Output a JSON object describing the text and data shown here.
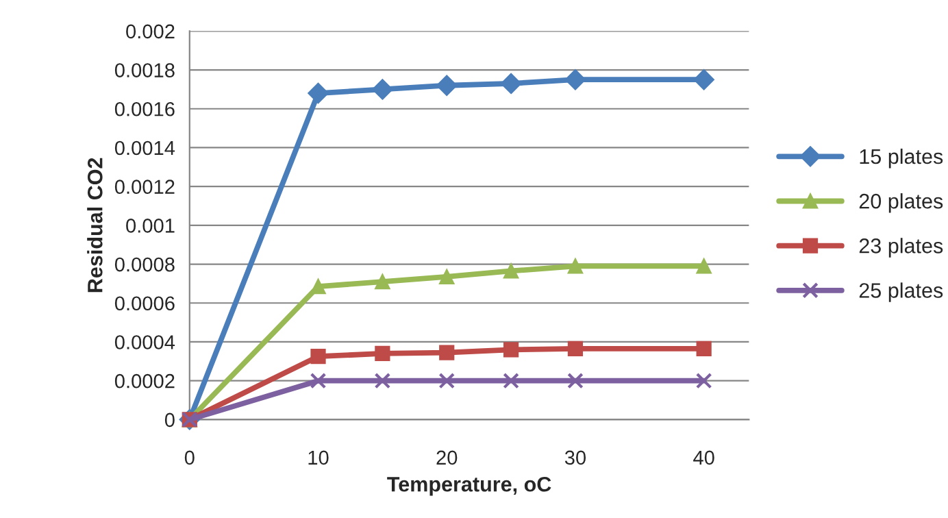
{
  "chart_data": {
    "type": "line",
    "xlabel": "Temperature, oC",
    "ylabel": "Residual CO2",
    "x": [
      0,
      10,
      15,
      20,
      25,
      30,
      40
    ],
    "series": [
      {
        "name": "15 plates",
        "color": "#4a7ebb",
        "marker": "diamond",
        "values": [
          0,
          0.00168,
          0.0017,
          0.00172,
          0.00173,
          0.00175,
          0.00175
        ]
      },
      {
        "name": "20 plates",
        "color": "#98b954",
        "marker": "triangle",
        "values": [
          0,
          0.000685,
          0.00071,
          0.000735,
          0.000765,
          0.00079,
          0.00079
        ]
      },
      {
        "name": "23 plates",
        "color": "#be4b48",
        "marker": "square",
        "values": [
          0,
          0.000325,
          0.00034,
          0.000345,
          0.00036,
          0.000365,
          0.000365
        ]
      },
      {
        "name": "25 plates",
        "color": "#7d60a0",
        "marker": "cross",
        "values": [
          0,
          0.0002,
          0.0002,
          0.0002,
          0.0002,
          0.0002,
          0.0002
        ]
      }
    ],
    "xlim": [
      0,
      43.5
    ],
    "xticks": [
      0,
      10,
      20,
      30,
      40
    ],
    "ylim": [
      0,
      0.002
    ],
    "yticks": [
      0,
      0.0002,
      0.0004,
      0.0006,
      0.0008,
      0.001,
      0.0012,
      0.0014,
      0.0016,
      0.0018,
      0.002
    ],
    "grid": "y",
    "legend": "right",
    "line_style": "solid"
  }
}
